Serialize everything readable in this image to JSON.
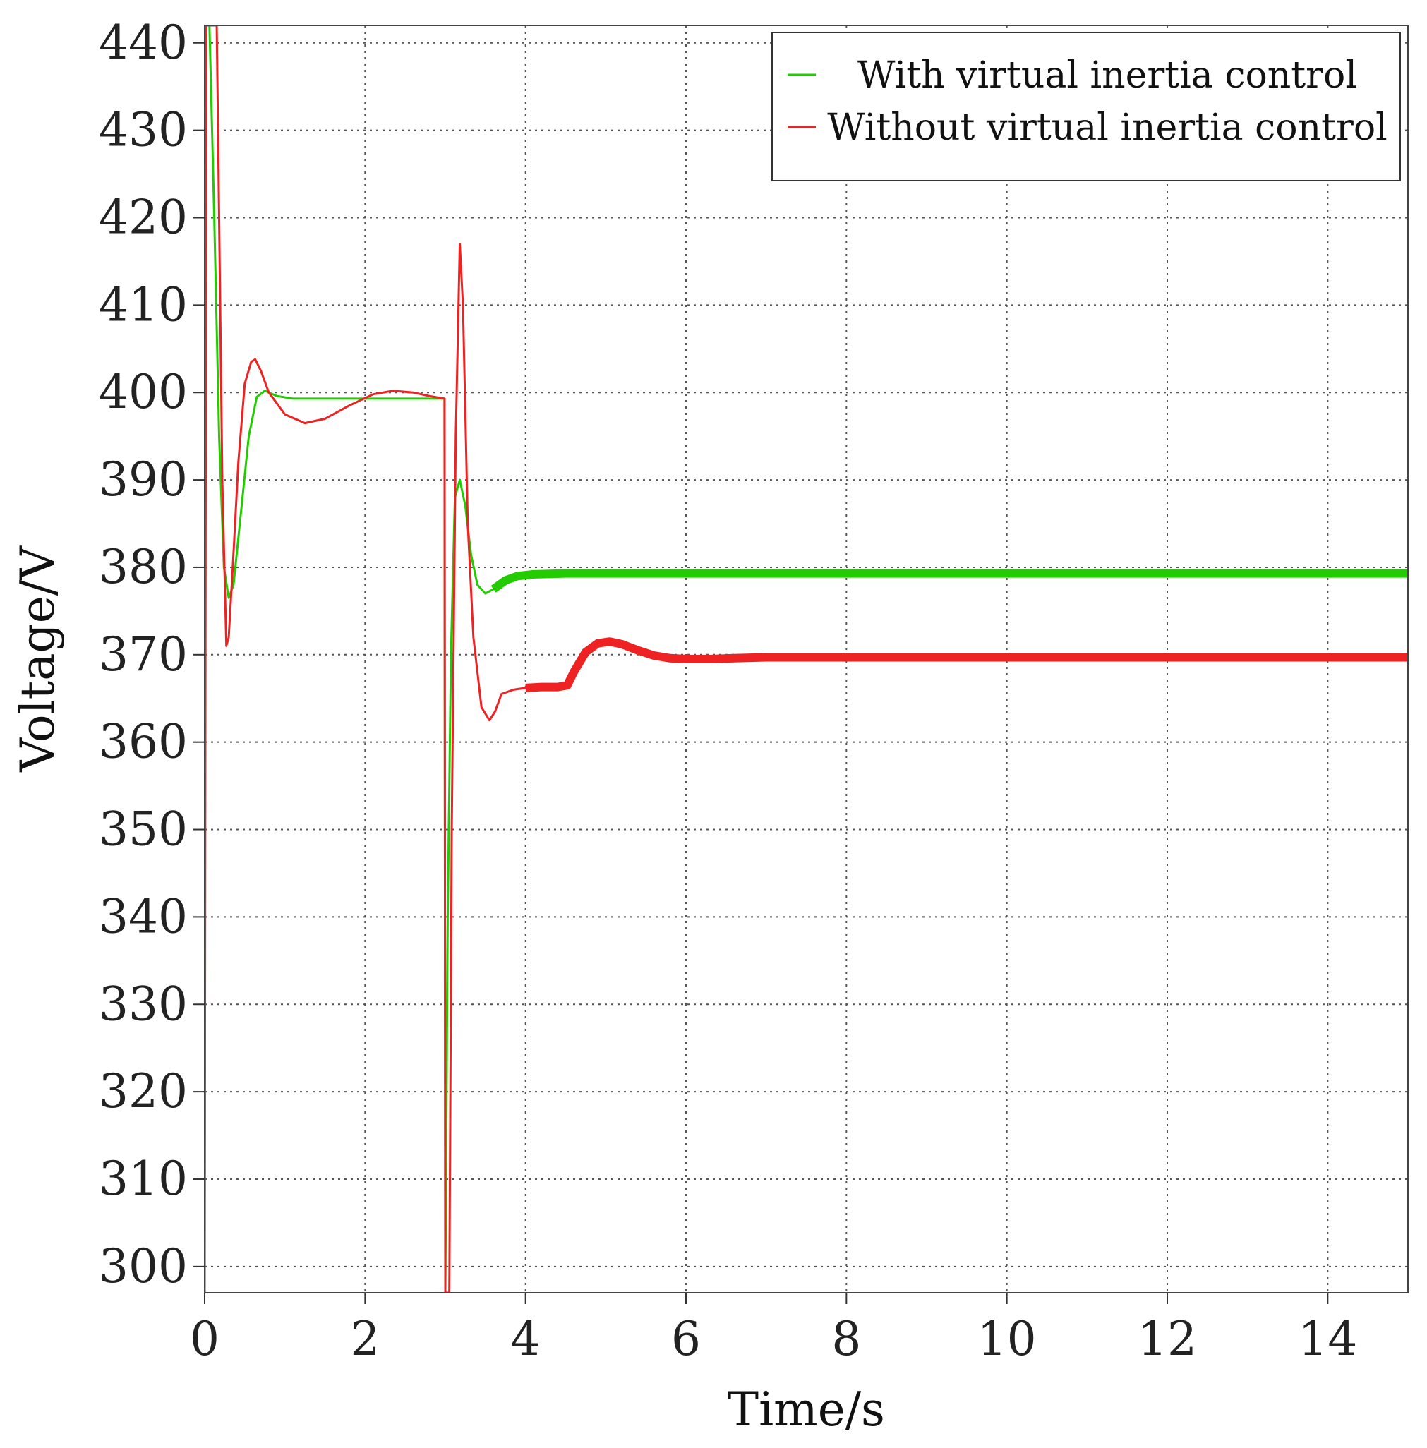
{
  "chart_data": {
    "type": "line",
    "xlabel": "Time/s",
    "ylabel": "Voltage/V",
    "xlim": [
      0,
      15
    ],
    "ylim": [
      297,
      442
    ],
    "xticks": [
      0,
      2,
      4,
      6,
      8,
      10,
      12,
      14
    ],
    "yticks": [
      300,
      310,
      320,
      330,
      340,
      350,
      360,
      370,
      380,
      390,
      400,
      410,
      420,
      430,
      440
    ],
    "grid": true,
    "legend_position": "top-right",
    "series": [
      {
        "name": "With virtual inertia control",
        "color": "#22cc00",
        "x": [
          0,
          0.01,
          0.02,
          0.06,
          0.12,
          0.18,
          0.24,
          0.3,
          0.36,
          0.45,
          0.55,
          0.65,
          0.75,
          0.9,
          1.1,
          1.5,
          2.0,
          2.5,
          2.99,
          3.0,
          3.03,
          3.07,
          3.12,
          3.18,
          3.25,
          3.32,
          3.4,
          3.5,
          3.6,
          3.75,
          3.9,
          4.1,
          4.5,
          5,
          6,
          8,
          10,
          12,
          15
        ],
        "y": [
          297,
          442,
          442,
          442,
          420,
          395,
          380,
          376.5,
          378,
          386,
          395,
          399.5,
          400.2,
          399.6,
          399.3,
          399.3,
          399.3,
          399.3,
          399.3,
          297,
          340,
          370,
          388,
          390,
          387,
          381.5,
          378,
          377,
          377.5,
          378.5,
          379,
          379.2,
          379.3,
          379.3,
          379.3,
          379.3,
          379.3,
          379.3,
          379.3
        ]
      },
      {
        "name": "Without virtual inertia control",
        "color": "#ee2222",
        "x": [
          0,
          0.02,
          0.04,
          0.1,
          0.15,
          0.18,
          0.22,
          0.27,
          0.3,
          0.35,
          0.42,
          0.5,
          0.58,
          0.63,
          0.7,
          0.8,
          1.0,
          1.25,
          1.5,
          1.8,
          2.1,
          2.35,
          2.6,
          2.8,
          2.99,
          3.0,
          3.02,
          3.05,
          3.08,
          3.13,
          3.18,
          3.22,
          3.28,
          3.35,
          3.45,
          3.55,
          3.62,
          3.7,
          3.85,
          4.0,
          4.2,
          4.4,
          4.52,
          4.6,
          4.75,
          4.9,
          5.05,
          5.2,
          5.4,
          5.6,
          5.8,
          6.0,
          6.3,
          6.6,
          7.0,
          8.0,
          10.0,
          12.0,
          15.0
        ],
        "y": [
          297,
          442,
          442,
          442,
          442,
          420,
          390,
          371,
          372,
          380,
          392,
          401,
          403.5,
          403.8,
          402.5,
          400,
          397.5,
          396.5,
          397,
          398.5,
          399.8,
          400.2,
          400,
          399.6,
          399.3,
          297,
          297,
          297,
          350,
          395,
          417,
          410,
          385,
          372,
          364,
          362.5,
          363.5,
          365.5,
          366,
          366.2,
          366.3,
          366.3,
          366.5,
          368,
          370.3,
          371.3,
          371.5,
          371.2,
          370.5,
          369.9,
          369.6,
          369.5,
          369.5,
          369.6,
          369.7,
          369.7,
          369.7,
          369.7,
          369.7
        ]
      }
    ]
  }
}
